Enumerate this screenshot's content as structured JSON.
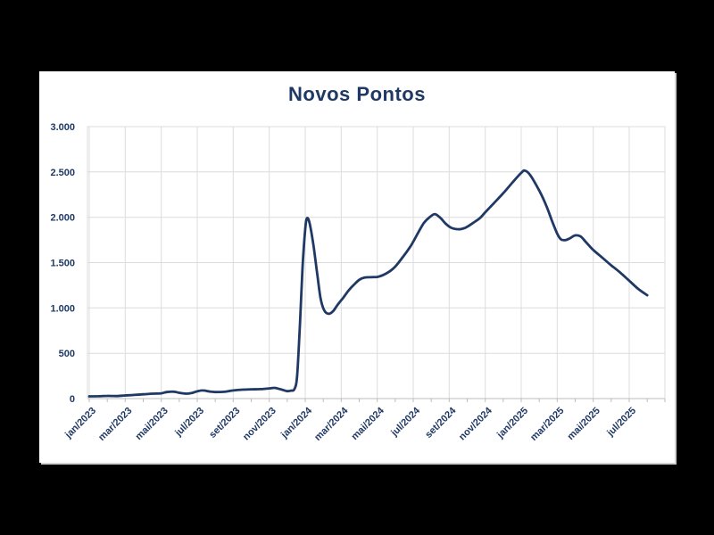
{
  "page": {
    "background_color": "#000000",
    "panel_background_color": "#ffffff"
  },
  "chart_data": {
    "type": "line",
    "title": "Novos Pontos",
    "title_color": "#1f3864",
    "line_color": "#1f3864",
    "label_color": "#1f3864",
    "grid_color": "#dcdcdc",
    "axis_color": "#bdbdbd",
    "grid": true,
    "legend": "none",
    "xlabel": "",
    "ylabel": "",
    "ylim": [
      0,
      3000
    ],
    "x_range_months": [
      0,
      32
    ],
    "x_label_interval_months": 2,
    "x_labels": [
      "jan/2023",
      "mar/2023",
      "mai/2023",
      "jul/2023",
      "set/2023",
      "nov/2023",
      "jan/2024",
      "mar/2024",
      "mai/2024",
      "jul/2024",
      "set/2024",
      "nov/2024",
      "jan/2025",
      "mar/2025",
      "mai/2025",
      "jul/2025"
    ],
    "y_ticks": [
      0,
      500,
      1000,
      1500,
      2000,
      2500,
      3000
    ],
    "y_tick_labels": [
      "0",
      "500",
      "1.000",
      "1.500",
      "2.000",
      "2.500",
      "3.000"
    ],
    "series": [
      {
        "name": "Novos Pontos",
        "x_unit": "months_since_jan_2023",
        "points": [
          [
            0,
            25
          ],
          [
            0.5,
            26
          ],
          [
            1,
            30
          ],
          [
            1.5,
            28
          ],
          [
            2,
            34
          ],
          [
            2.5,
            40
          ],
          [
            3,
            47
          ],
          [
            3.5,
            54
          ],
          [
            4,
            58
          ],
          [
            4.3,
            72
          ],
          [
            4.7,
            76
          ],
          [
            5,
            64
          ],
          [
            5.4,
            54
          ],
          [
            5.7,
            62
          ],
          [
            6,
            80
          ],
          [
            6.3,
            90
          ],
          [
            6.7,
            78
          ],
          [
            7,
            72
          ],
          [
            7.5,
            75
          ],
          [
            8,
            90
          ],
          [
            8.5,
            98
          ],
          [
            9,
            102
          ],
          [
            9.5,
            104
          ],
          [
            10,
            112
          ],
          [
            10.3,
            118
          ],
          [
            10.7,
            98
          ],
          [
            11,
            82
          ],
          [
            11.2,
            88
          ],
          [
            11.4,
            105
          ],
          [
            11.55,
            250
          ],
          [
            11.7,
            800
          ],
          [
            11.85,
            1450
          ],
          [
            12,
            1870
          ],
          [
            12.1,
            1990
          ],
          [
            12.25,
            1930
          ],
          [
            12.45,
            1700
          ],
          [
            12.65,
            1400
          ],
          [
            12.85,
            1110
          ],
          [
            13.05,
            975
          ],
          [
            13.3,
            935
          ],
          [
            13.55,
            965
          ],
          [
            13.8,
            1035
          ],
          [
            14.1,
            1110
          ],
          [
            14.4,
            1190
          ],
          [
            14.7,
            1255
          ],
          [
            15,
            1310
          ],
          [
            15.3,
            1335
          ],
          [
            15.7,
            1340
          ],
          [
            16,
            1342
          ],
          [
            16.3,
            1360
          ],
          [
            16.7,
            1405
          ],
          [
            17,
            1455
          ],
          [
            17.4,
            1555
          ],
          [
            17.8,
            1665
          ],
          [
            18,
            1730
          ],
          [
            18.3,
            1840
          ],
          [
            18.6,
            1940
          ],
          [
            18.9,
            2000
          ],
          [
            19.2,
            2035
          ],
          [
            19.5,
            1995
          ],
          [
            19.8,
            1930
          ],
          [
            20.1,
            1885
          ],
          [
            20.5,
            1868
          ],
          [
            20.9,
            1885
          ],
          [
            21.3,
            1935
          ],
          [
            21.7,
            1990
          ],
          [
            22,
            2055
          ],
          [
            22.5,
            2160
          ],
          [
            23,
            2265
          ],
          [
            23.5,
            2380
          ],
          [
            24,
            2490
          ],
          [
            24.2,
            2515
          ],
          [
            24.5,
            2465
          ],
          [
            25,
            2295
          ],
          [
            25.4,
            2125
          ],
          [
            25.7,
            1965
          ],
          [
            26,
            1820
          ],
          [
            26.2,
            1758
          ],
          [
            26.45,
            1748
          ],
          [
            26.7,
            1768
          ],
          [
            27,
            1800
          ],
          [
            27.3,
            1788
          ],
          [
            27.6,
            1725
          ],
          [
            28,
            1640
          ],
          [
            28.5,
            1555
          ],
          [
            29,
            1470
          ],
          [
            29.5,
            1390
          ],
          [
            30,
            1300
          ],
          [
            30.5,
            1210
          ],
          [
            31,
            1140
          ]
        ]
      }
    ]
  }
}
